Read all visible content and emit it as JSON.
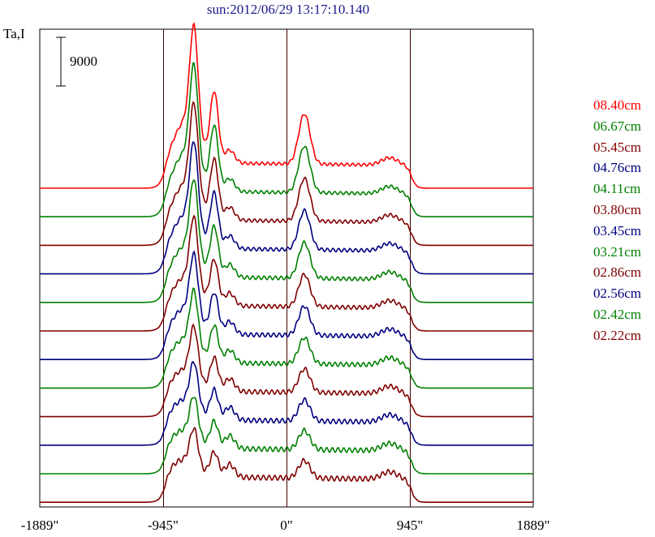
{
  "title": "sun:2012/06/29 13:17:10.140",
  "ylabel": "Ta,I",
  "scale_bar_label": "9000",
  "chart_data": {
    "type": "line",
    "title": "sun:2012/06/29 13:17:10.140",
    "ylabel": "Ta,I",
    "xlabel": "",
    "x_ticks": [
      "-1889\"",
      "-945\"",
      "0\"",
      "945\"",
      "1889\""
    ],
    "x_tick_values": [
      -1889,
      -945,
      0,
      945,
      1889
    ],
    "xlim": [
      -1889,
      1889
    ],
    "vertical_lines": [
      -945,
      0,
      945
    ],
    "scale_bar": 9000,
    "stacked_offset": true,
    "grid": false,
    "legend_position": "right",
    "series": [
      {
        "name": "08.40cm",
        "color": "#ff0000"
      },
      {
        "name": "06.67cm",
        "color": "#008000"
      },
      {
        "name": "05.45cm",
        "color": "#800000"
      },
      {
        "name": "04.76cm",
        "color": "#000080"
      },
      {
        "name": "04.11cm",
        "color": "#008000"
      },
      {
        "name": "03.80cm",
        "color": "#800000"
      },
      {
        "name": "03.45cm",
        "color": "#000080"
      },
      {
        "name": "03.21cm",
        "color": "#008000"
      },
      {
        "name": "02.86cm",
        "color": "#800000"
      },
      {
        "name": "02.56cm",
        "color": "#000080"
      },
      {
        "name": "02.42cm",
        "color": "#008000"
      },
      {
        "name": "02.22cm",
        "color": "#800000"
      }
    ]
  }
}
